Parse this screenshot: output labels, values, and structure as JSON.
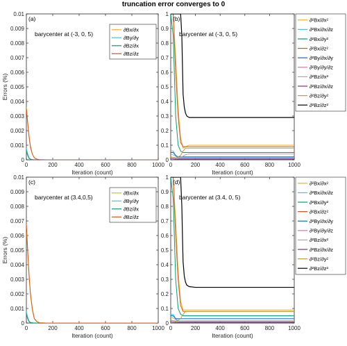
{
  "figure": {
    "title": "truncation error converges to 0"
  },
  "colors": {
    "c1": "#EDB120",
    "c2": "#4DBEEE",
    "c3": "#009E73",
    "c4": "#D95319",
    "c5": "#0072BD",
    "c6": "#CC79A7",
    "c7": "#AAAAAA",
    "c8": "#7E2F8E",
    "c9": "#B8A040",
    "c10": "#000000"
  },
  "chart_data": [
    {
      "id": "a",
      "type": "line",
      "panel_label": "(a)",
      "annotation": "barycenter at (-3, 0, 5)",
      "xlabel": "Iteration (count)",
      "ylabel": "Errors (%)",
      "xlim": [
        0,
        1000
      ],
      "ylim": [
        0,
        0.01
      ],
      "xticks": [
        "0",
        "200",
        "400",
        "600",
        "800",
        "1000"
      ],
      "yticks": [
        "0",
        "0.001",
        "0.002",
        "0.003",
        "0.004",
        "0.005",
        "0.006",
        "0.007",
        "0.008",
        "0.009",
        "0.01"
      ],
      "legend_placement": "top-right-inside",
      "series": [
        {
          "name": "∂Bx/∂x",
          "color_key": "c1",
          "x": [
            0,
            10,
            20,
            30,
            45,
            60,
            80,
            100,
            150,
            1000
          ],
          "y": [
            0.0036,
            0.0026,
            0.0017,
            0.001,
            0.0004,
            0.00015,
            4e-05,
            1e-05,
            0,
            0
          ]
        },
        {
          "name": "∂By/∂y",
          "color_key": "c2",
          "x": [
            0,
            10,
            20,
            30,
            50,
            80,
            1000
          ],
          "y": [
            0.0008,
            0.0004,
            0.00015,
            5e-05,
            1e-05,
            0,
            0
          ]
        },
        {
          "name": "∂Bz/∂x",
          "color_key": "c3",
          "x": [
            0,
            10,
            20,
            30,
            50,
            80,
            1000
          ],
          "y": [
            0.0006,
            0.0003,
            0.0001,
            4e-05,
            1e-05,
            0,
            0
          ]
        },
        {
          "name": "∂Bz/∂z",
          "color_key": "c4",
          "x": [
            0,
            10,
            20,
            30,
            45,
            60,
            80,
            100,
            150,
            1000
          ],
          "y": [
            0.0035,
            0.0025,
            0.0016,
            0.0009,
            0.0004,
            0.00014,
            4e-05,
            1e-05,
            0,
            0
          ]
        }
      ]
    },
    {
      "id": "b",
      "type": "line",
      "panel_label": "(b)",
      "annotation": "barycenter at (-3, 0, 5)",
      "xlabel": "Iteration (count)",
      "ylabel": "",
      "xlim": [
        0,
        1000
      ],
      "ylim": [
        0,
        1
      ],
      "xticks": [
        "0",
        "200",
        "400",
        "600",
        "800",
        "1000"
      ],
      "yticks": [
        "0",
        "0.1",
        "0.2",
        "0.3",
        "0.4",
        "0.5",
        "0.6",
        "0.7",
        "0.8",
        "0.9",
        "1"
      ],
      "legend_placement": "outside-right",
      "series": [
        {
          "name": "∂²Bx/∂x²",
          "color_key": "c1",
          "x": [
            0,
            20,
            40,
            60,
            80,
            100,
            120,
            150,
            200,
            300,
            1000
          ],
          "y": [
            1,
            1,
            0.7,
            0.35,
            0.15,
            0.08,
            0.09,
            0.1,
            0.1,
            0.1,
            0.1
          ]
        },
        {
          "name": "∂²Bx/∂x/∂z",
          "color_key": "c2",
          "x": [
            0,
            20,
            40,
            60,
            80,
            120,
            200,
            1000
          ],
          "y": [
            0.06,
            0.06,
            0.03,
            0.015,
            0.015,
            0.015,
            0.015,
            0.015
          ]
        },
        {
          "name": "∂²Bx/∂y²",
          "color_key": "c3",
          "x": [
            0,
            20,
            40,
            60,
            80,
            100,
            150,
            200,
            1000
          ],
          "y": [
            1,
            0.85,
            0.3,
            0.1,
            0.06,
            0.05,
            0.05,
            0.05,
            0.05
          ]
        },
        {
          "name": "∂²Bx/∂z²",
          "color_key": "c4",
          "x": [
            0,
            20,
            40,
            60,
            80,
            100,
            120,
            150,
            200,
            1000
          ],
          "y": [
            1,
            1,
            0.6,
            0.3,
            0.12,
            0.09,
            0.09,
            0.09,
            0.09,
            0.09
          ]
        },
        {
          "name": "∂²By/∂x/∂y",
          "color_key": "c5",
          "x": [
            0,
            20,
            40,
            60,
            80,
            120,
            200,
            1000
          ],
          "y": [
            0.05,
            0.05,
            0.03,
            0.02,
            0.02,
            0.02,
            0.02,
            0.02
          ]
        },
        {
          "name": "∂²By/∂y/∂z",
          "color_key": "c6",
          "x": [
            0,
            30,
            60,
            90,
            120,
            200,
            1000
          ],
          "y": [
            0.02,
            0.015,
            0.01,
            0.01,
            0.01,
            0.01,
            0.01
          ]
        },
        {
          "name": "∂²Bz/∂x²",
          "color_key": "c7",
          "x": [
            0,
            30,
            60,
            90,
            120,
            150,
            200,
            1000
          ],
          "y": [
            0.04,
            0.03,
            0.01,
            0.02,
            0.035,
            0.04,
            0.04,
            0.04
          ]
        },
        {
          "name": "∂²Bz/∂x/∂z",
          "color_key": "c8",
          "x": [
            0,
            30,
            60,
            90,
            120,
            200,
            1000
          ],
          "y": [
            0.01,
            0.005,
            0.005,
            0.005,
            0.005,
            0.005,
            0.005
          ]
        },
        {
          "name": "∂²Bz/∂y²",
          "color_key": "c9",
          "x": [
            0,
            40,
            80,
            100,
            120,
            150,
            200,
            1000
          ],
          "y": [
            0.02,
            0.01,
            0.03,
            0.06,
            0.08,
            0.08,
            0.08,
            0.08
          ]
        },
        {
          "name": "∂²Bz/∂z²",
          "color_key": "c10",
          "x": [
            0,
            60,
            80,
            90,
            95,
            100,
            110,
            120,
            130,
            150,
            200,
            300,
            1000
          ],
          "y": [
            1,
            1,
            1,
            0.85,
            0.65,
            0.45,
            0.36,
            0.32,
            0.3,
            0.29,
            0.29,
            0.29,
            0.29
          ]
        }
      ]
    },
    {
      "id": "c",
      "type": "line",
      "panel_label": "(c)",
      "annotation": "barycenter at (3.4,0,5)",
      "xlabel": "Iteration (count)",
      "ylabel": "Errors (%)",
      "xlim": [
        0,
        1000
      ],
      "ylim": [
        0,
        0.01
      ],
      "xticks": [
        "0",
        "200",
        "400",
        "600",
        "800",
        "1000"
      ],
      "yticks": [
        "0",
        "0.001",
        "0.002",
        "0.003",
        "0.004",
        "0.005",
        "0.006",
        "0.007",
        "0.008",
        "0.009",
        "0.01"
      ],
      "legend_placement": "top-right-inside",
      "series": [
        {
          "name": "∂Bx/∂x",
          "color_key": "c1",
          "x": [
            0,
            10,
            20,
            30,
            45,
            60,
            80,
            100,
            150,
            1000
          ],
          "y": [
            0.0065,
            0.0048,
            0.0032,
            0.002,
            0.0009,
            0.0003,
            0.0001,
            2e-05,
            0,
            0
          ]
        },
        {
          "name": "∂By/∂y",
          "color_key": "c2",
          "x": [
            0,
            10,
            20,
            30,
            50,
            80,
            1000
          ],
          "y": [
            0.0008,
            0.0004,
            0.00015,
            5e-05,
            1e-05,
            0,
            0
          ]
        },
        {
          "name": "∂Bz/∂x",
          "color_key": "c3",
          "x": [
            0,
            10,
            20,
            30,
            50,
            80,
            1000
          ],
          "y": [
            0.0006,
            0.0003,
            0.0001,
            4e-05,
            1e-05,
            0,
            0
          ]
        },
        {
          "name": "∂Bz/∂z",
          "color_key": "c4",
          "x": [
            0,
            10,
            20,
            30,
            45,
            60,
            80,
            100,
            150,
            1000
          ],
          "y": [
            0.0068,
            0.005,
            0.0034,
            0.0021,
            0.001,
            0.0003,
            0.0001,
            2e-05,
            0,
            0
          ]
        }
      ]
    },
    {
      "id": "d",
      "type": "line",
      "panel_label": "(d)",
      "annotation": "barycenter at (3.4, 0, 5)",
      "xlabel": "Iteration (count)",
      "ylabel": "",
      "xlim": [
        0,
        1000
      ],
      "ylim": [
        0,
        1
      ],
      "xticks": [
        "0",
        "200",
        "400",
        "600",
        "800",
        "1000"
      ],
      "yticks": [
        "0",
        "0.1",
        "0.2",
        "0.3",
        "0.4",
        "0.5",
        "0.6",
        "0.7",
        "0.8",
        "0.9",
        "1"
      ],
      "legend_placement": "outside-right",
      "series": [
        {
          "name": "∂²Bx/∂x²",
          "color_key": "c1",
          "x": [
            0,
            20,
            40,
            60,
            80,
            100,
            120,
            150,
            200,
            1000
          ],
          "y": [
            1,
            1,
            0.7,
            0.35,
            0.15,
            0.09,
            0.09,
            0.09,
            0.09,
            0.09
          ]
        },
        {
          "name": "∂²Bx/∂x/∂z",
          "color_key": "c2",
          "x": [
            0,
            20,
            40,
            60,
            80,
            120,
            200,
            1000
          ],
          "y": [
            0.06,
            0.06,
            0.03,
            0.015,
            0.015,
            0.015,
            0.015,
            0.015
          ]
        },
        {
          "name": "∂²Bx/∂y²",
          "color_key": "c3",
          "x": [
            0,
            20,
            40,
            60,
            80,
            100,
            150,
            200,
            1000
          ],
          "y": [
            1,
            0.85,
            0.3,
            0.1,
            0.06,
            0.05,
            0.05,
            0.05,
            0.05
          ]
        },
        {
          "name": "∂²Bx/∂z²",
          "color_key": "c4",
          "x": [
            0,
            20,
            40,
            60,
            80,
            100,
            120,
            150,
            200,
            1000
          ],
          "y": [
            1,
            1,
            0.6,
            0.3,
            0.12,
            0.08,
            0.08,
            0.08,
            0.08,
            0.08
          ]
        },
        {
          "name": "∂²By/∂x/∂y",
          "color_key": "c5",
          "x": [
            0,
            20,
            40,
            60,
            80,
            120,
            200,
            1000
          ],
          "y": [
            0.05,
            0.05,
            0.03,
            0.03,
            0.03,
            0.03,
            0.03,
            0.03
          ]
        },
        {
          "name": "∂²By/∂y/∂z",
          "color_key": "c6",
          "x": [
            0,
            30,
            60,
            90,
            120,
            200,
            1000
          ],
          "y": [
            0.02,
            0.015,
            0.01,
            0.01,
            0.01,
            0.01,
            0.01
          ]
        },
        {
          "name": "∂²Bz/∂x²",
          "color_key": "c7",
          "x": [
            0,
            30,
            60,
            90,
            120,
            150,
            200,
            1000
          ],
          "y": [
            0.04,
            0.03,
            0.01,
            0.01,
            0.015,
            0.015,
            0.015,
            0.015
          ]
        },
        {
          "name": "∂²Bz/∂x/∂z",
          "color_key": "c8",
          "x": [
            0,
            30,
            60,
            90,
            120,
            200,
            1000
          ],
          "y": [
            0.01,
            0.005,
            0.005,
            0.005,
            0.005,
            0.005,
            0.005
          ]
        },
        {
          "name": "∂²Bz/∂y²",
          "color_key": "c9",
          "x": [
            0,
            40,
            80,
            100,
            120,
            150,
            200,
            1000
          ],
          "y": [
            0.02,
            0.01,
            0.03,
            0.06,
            0.08,
            0.08,
            0.08,
            0.08
          ]
        },
        {
          "name": "∂²Bz/∂z²",
          "color_key": "c10",
          "x": [
            0,
            60,
            80,
            90,
            95,
            100,
            110,
            120,
            130,
            150,
            200,
            300,
            1000
          ],
          "y": [
            1,
            1,
            1,
            0.8,
            0.6,
            0.42,
            0.32,
            0.28,
            0.26,
            0.25,
            0.245,
            0.245,
            0.245
          ]
        }
      ]
    }
  ]
}
